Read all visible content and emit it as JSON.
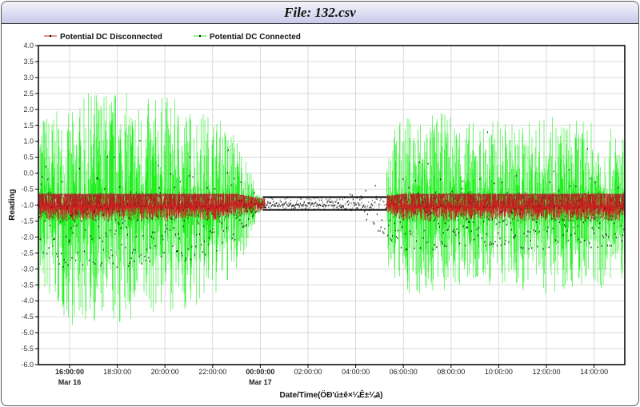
{
  "window": {
    "title": "File: 132.csv"
  },
  "chart_data": {
    "type": "line",
    "xlabel": "Date/Time(ÖÐ'ú±ê×¼Ê±¼ä)",
    "ylabel": "Reading",
    "ylim": [
      -6.0,
      4.0
    ],
    "yticks": [
      "4.0",
      "3.5",
      "3.0",
      "2.5",
      "2.0",
      "1.5",
      "1.0",
      "0.5",
      "0.0",
      "-0.5",
      "-1.0",
      "-1.5",
      "-2.0",
      "-2.5",
      "-3.0",
      "-3.5",
      "-4.0",
      "-4.5",
      "-5.0",
      "-5.5",
      "-6.0"
    ],
    "xticks": [
      {
        "time": "16:00:00",
        "date": "Mar 16",
        "bold": true
      },
      {
        "time": "18:00:00"
      },
      {
        "time": "20:00:00"
      },
      {
        "time": "22:00:00"
      },
      {
        "time": "00:00:00",
        "date": "Mar 17",
        "bold": true
      },
      {
        "time": "02:00:00"
      },
      {
        "time": "04:00:00"
      },
      {
        "time": "06:00:00"
      },
      {
        "time": "08:00:00"
      },
      {
        "time": "10:00:00"
      },
      {
        "time": "12:00:00"
      },
      {
        "time": "14:00:00"
      }
    ],
    "xrange": [
      "Mar 16 14:42",
      "Mar 17 15:18"
    ],
    "grid": true,
    "legend": "top-left",
    "hours": [
      "15:00",
      "16:00",
      "17:00",
      "18:00",
      "19:00",
      "20:00",
      "21:00",
      "22:00",
      "23:00",
      "00:00",
      "01:00",
      "02:00",
      "03:00",
      "04:00",
      "05:00",
      "06:00",
      "07:00",
      "08:00",
      "09:00",
      "10:00",
      "11:00",
      "12:00",
      "13:00",
      "14:00",
      "15:00"
    ],
    "series": [
      {
        "name": "Potential DC Disconnected",
        "color": "#cc2222",
        "min": [
          -1.5,
          -1.5,
          -1.5,
          -1.5,
          -1.5,
          -1.5,
          -1.5,
          -1.5,
          -1.4,
          -1.2,
          -1.15,
          -1.15,
          -1.15,
          -1.15,
          -1.2,
          -1.5,
          -1.5,
          -1.5,
          -1.5,
          -1.5,
          -1.5,
          -1.5,
          -1.5,
          -1.5,
          -1.5
        ],
        "max": [
          -0.6,
          -0.6,
          -0.6,
          -0.6,
          -0.6,
          -0.6,
          -0.6,
          -0.6,
          -0.6,
          -0.75,
          -0.75,
          -0.75,
          -0.75,
          -0.75,
          -0.7,
          -0.6,
          -0.6,
          -0.6,
          -0.6,
          -0.6,
          -0.6,
          -0.6,
          -0.6,
          -0.6,
          -0.6
        ]
      },
      {
        "name": "Potential DC Connected",
        "color": "#22ee22",
        "min": [
          -4.0,
          -4.8,
          -4.7,
          -4.9,
          -4.6,
          -4.3,
          -4.4,
          -4.0,
          -3.2,
          -1.2,
          -1.15,
          -1.15,
          -1.15,
          -1.6,
          -2.8,
          -3.8,
          -3.9,
          -3.7,
          -3.6,
          -3.6,
          -3.7,
          -3.8,
          -3.6,
          -3.7,
          -3.5
        ],
        "max": [
          2.0,
          1.9,
          2.7,
          2.7,
          2.3,
          2.5,
          2.1,
          1.9,
          1.3,
          -0.75,
          -0.75,
          -0.75,
          -0.75,
          0.0,
          1.0,
          1.8,
          1.9,
          1.9,
          1.6,
          1.7,
          1.6,
          1.8,
          1.7,
          1.6,
          1.3
        ]
      }
    ]
  }
}
